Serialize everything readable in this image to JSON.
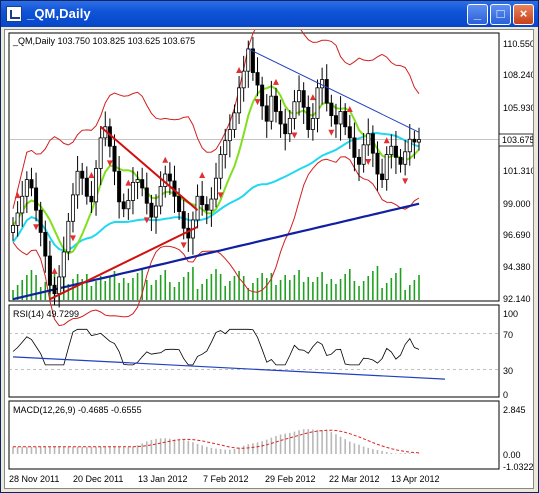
{
  "window": {
    "title": "_QM,Daily",
    "buttons": {
      "minimize": "_",
      "maximize": "□",
      "close": "×"
    }
  },
  "main_panel": {
    "header": "_QM,Daily  103.750 103.825 103.625 103.675",
    "price_labels": [
      "110.550",
      "108.240",
      "105.930",
      "101.310",
      "99.000",
      "96.690",
      "94.380",
      "92.140"
    ],
    "current_price": "103.675"
  },
  "rsi_panel": {
    "header": "RSI(14) 49.7299",
    "levels": [
      "100",
      "70",
      "30",
      "0"
    ]
  },
  "macd_panel": {
    "header": "MACD(12,26,9) -0.4685 -0.6555",
    "levels": [
      "2.845",
      "0.00",
      "-1.0322"
    ]
  },
  "x_axis": {
    "labels": [
      "28 Nov 2011",
      "20 Dec 2011",
      "13 Jan 2012",
      "7 Feb 2012",
      "29 Feb 2012",
      "22 Mar 2012",
      "13 Apr 2012"
    ]
  },
  "colors": {
    "candles": "#000000",
    "bollinger": "#d02020",
    "sma_short": "#80e020",
    "sma_mid": "#20d8f0",
    "sma_long": "#1020a0",
    "trendline_red": "#d01010",
    "trendline_blue": "#2040c0",
    "volume": "#20a020",
    "macd_signal": "#e02020",
    "fractal": "#e03030"
  },
  "chart_data": {
    "type": "candlestick",
    "title": "_QM,Daily",
    "ylim": [
      92.14,
      111.2
    ],
    "close_series": [
      97.5,
      98.4,
      99.6,
      100.8,
      100.2,
      98.6,
      97.0,
      95.3,
      93.2,
      92.6,
      93.8,
      95.6,
      97.8,
      99.7,
      101.4,
      100.9,
      99.6,
      99.2,
      101.6,
      103.8,
      104.6,
      103.2,
      101.4,
      99.2,
      98.7,
      99.3,
      100.6,
      100.8,
      100.2,
      99.1,
      98.1,
      98.9,
      100.3,
      101.2,
      100.7,
      99.6,
      98.5,
      97.3,
      96.6,
      97.9,
      99.6,
      99.0,
      98.6,
      99.4,
      100.9,
      102.6,
      103.6,
      104.4,
      105.6,
      107.4,
      108.6,
      110.2,
      108.5,
      107.6,
      106.1,
      105.0,
      106.8,
      105.7,
      104.8,
      104.1,
      105.2,
      106.4,
      107.2,
      106.0,
      104.4,
      105.2,
      107.4,
      108.0,
      106.3,
      105.4,
      104.8,
      105.7,
      104.6,
      103.8,
      102.4,
      101.9,
      103.3,
      104.1,
      102.7,
      101.2,
      100.8,
      102.6,
      103.2,
      102.4,
      101.9,
      102.8,
      103.7,
      103.5,
      103.675
    ]
  }
}
